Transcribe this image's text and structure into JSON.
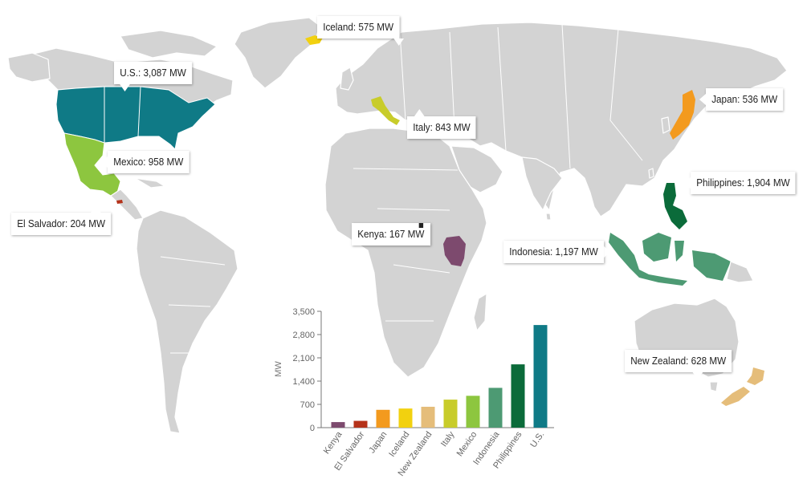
{
  "callouts": {
    "iceland": "Iceland: 575 MW",
    "us": "U.S.: 3,087 MW",
    "japan": "Japan: 536 MW",
    "italy": "Italy: 843 MW",
    "mexico": "Mexico: 958 MW",
    "philippines": "Philippines: 1,904 MW",
    "el_salvador": "El Salvador: 204 MW",
    "kenya": "Kenya: 167 MW",
    "indonesia": "Indonesia: 1,197 MW",
    "new_zealand": "New Zealand: 628 MW"
  },
  "colors": {
    "land": "#d3d3d3",
    "us": "#0f7a86",
    "mexico": "#8dc63f",
    "el_salvador": "#b5321a",
    "iceland": "#f2d10f",
    "italy": "#c8cc2a",
    "kenya": "#7d4a6e",
    "japan": "#f39a1e",
    "philippines": "#0b6b3a",
    "indonesia": "#4d9a73",
    "new_zealand": "#e5bd7a"
  },
  "chart_data": {
    "type": "bar",
    "ylabel": "MW",
    "ylim": [
      0,
      3500
    ],
    "yticks": [
      "0",
      "700",
      "1,400",
      "2,100",
      "2,800",
      "3,500"
    ],
    "ytick_values": [
      0,
      700,
      1400,
      2100,
      2800,
      3500
    ],
    "categories": [
      "Kenya",
      "El Salvador",
      "Japan",
      "Iceland",
      "New Zealand",
      "Italy",
      "Mexico",
      "Indonesia",
      "Philippines",
      "U.S."
    ],
    "values": [
      167,
      204,
      536,
      575,
      628,
      843,
      958,
      1197,
      1904,
      3087
    ],
    "colors": [
      "#7d4a6e",
      "#b5321a",
      "#f39a1e",
      "#f2d10f",
      "#e5bd7a",
      "#c8cc2a",
      "#8dc63f",
      "#4d9a73",
      "#0b6b3a",
      "#0f7a86"
    ]
  }
}
